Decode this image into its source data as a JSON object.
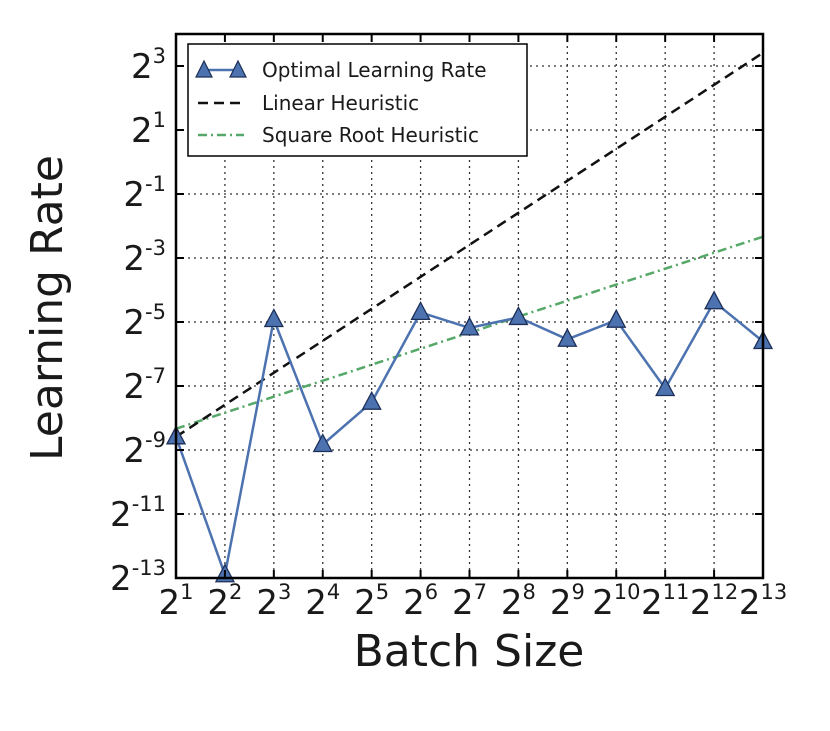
{
  "chart_data": {
    "type": "line",
    "xlabel": "Batch Size",
    "ylabel": "Learning Rate",
    "x_scale": "log2",
    "y_scale": "log2",
    "x": [
      2,
      4,
      8,
      16,
      32,
      64,
      128,
      256,
      512,
      1024,
      2048,
      4096,
      8192
    ],
    "xlim": [
      2,
      8192
    ],
    "ylim": [
      0.00012207,
      16
    ],
    "x_ticks": [
      {
        "base": "2",
        "exp": "1",
        "value": 2
      },
      {
        "base": "2",
        "exp": "2",
        "value": 4
      },
      {
        "base": "2",
        "exp": "3",
        "value": 8
      },
      {
        "base": "2",
        "exp": "4",
        "value": 16
      },
      {
        "base": "2",
        "exp": "5",
        "value": 32
      },
      {
        "base": "2",
        "exp": "6",
        "value": 64
      },
      {
        "base": "2",
        "exp": "7",
        "value": 128
      },
      {
        "base": "2",
        "exp": "8",
        "value": 256
      },
      {
        "base": "2",
        "exp": "9",
        "value": 512
      },
      {
        "base": "2",
        "exp": "10",
        "value": 1024
      },
      {
        "base": "2",
        "exp": "11",
        "value": 2048
      },
      {
        "base": "2",
        "exp": "12",
        "value": 4096
      },
      {
        "base": "2",
        "exp": "13",
        "value": 8192
      }
    ],
    "y_ticks": [
      {
        "base": "2",
        "exp": "-13",
        "value": 0.00012207
      },
      {
        "base": "2",
        "exp": "-11",
        "value": 0.00048828
      },
      {
        "base": "2",
        "exp": "-9",
        "value": 0.00195313
      },
      {
        "base": "2",
        "exp": "-7",
        "value": 0.0078125
      },
      {
        "base": "2",
        "exp": "-5",
        "value": 0.03125
      },
      {
        "base": "2",
        "exp": "-3",
        "value": 0.125
      },
      {
        "base": "2",
        "exp": "-1",
        "value": 0.5
      },
      {
        "base": "2",
        "exp": "1",
        "value": 2
      },
      {
        "base": "2",
        "exp": "3",
        "value": 8
      }
    ],
    "grid": true,
    "legend_position": "top-left",
    "series": [
      {
        "name": "Optimal Learning Rate",
        "color": "#4c72b0",
        "style": "solid",
        "marker": "triangle",
        "values": [
          0.0026,
          0.000131,
          0.033,
          0.0022,
          0.0055,
          0.0385,
          0.0275,
          0.0345,
          0.0215,
          0.0325,
          0.0074,
          0.0485,
          0.0205
        ]
      },
      {
        "name": "Linear Heuristic",
        "color": "#111111",
        "style": "dashed",
        "marker": "none",
        "values": [
          0.0026,
          0.0052,
          0.0104,
          0.0208,
          0.0416,
          0.0832,
          0.1664,
          0.3328,
          0.6656,
          1.3312,
          2.6624,
          5.3248,
          10.6496
        ]
      },
      {
        "name": "Square Root Heuristic",
        "color": "#55a868",
        "style": "dash-dot",
        "marker": "none",
        "values": [
          0.0031,
          0.00438,
          0.0062,
          0.00877,
          0.0124,
          0.01754,
          0.0248,
          0.0351,
          0.0496,
          0.0702,
          0.0992,
          0.1403,
          0.1984
        ]
      }
    ]
  }
}
